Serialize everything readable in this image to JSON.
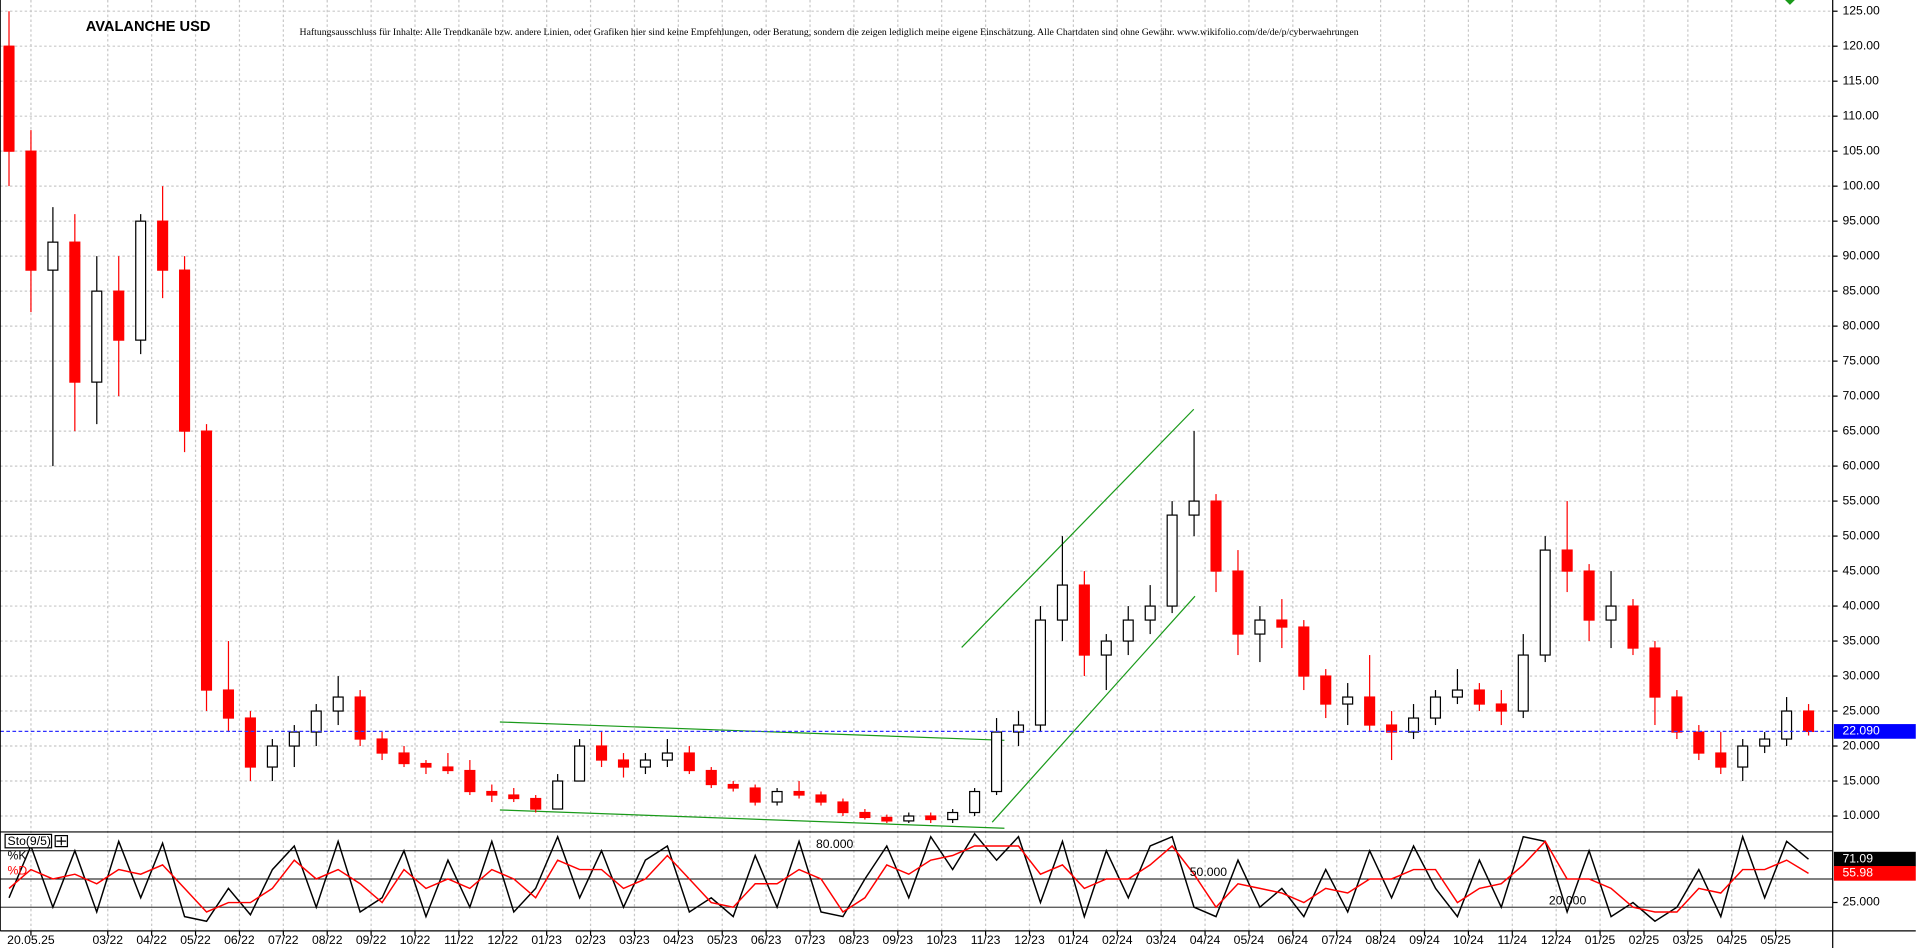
{
  "chart_data": [
    {
      "type": "candlestick",
      "title": "AVALANCHE USD",
      "subtitle": "Haftungsausschluss für Inhalte: Alle Trendkanäle bzw. andere Linien, oder Grafiken hier sind keine Empfehlungen, oder Beratung, sondern die zeigen lediglich meine eigene Einschätzung. Alle Chartdaten sind ohne Gewähr.  www.wikifolio.com/de/de/p/cyberwaehrungen",
      "up_color": "#000000",
      "down_color": "#ff0000",
      "grid": true,
      "x": [
        -0.25,
        0.25,
        0.75,
        1.25,
        1.75,
        2.25,
        2.75,
        3.25,
        3.75,
        4.25,
        4.75,
        5.25,
        5.75,
        6.25,
        6.75,
        7.25,
        7.75,
        8.25,
        8.75,
        9.25,
        9.75,
        10.25,
        10.75,
        11.25,
        11.75,
        12.25,
        12.75,
        13.25,
        13.75,
        14.25,
        14.75,
        15.25,
        15.75,
        16.25,
        16.75,
        17.25,
        17.75,
        18.25,
        18.75,
        19.25,
        19.75,
        20.25,
        20.75,
        21.25,
        21.75,
        22.25,
        22.75,
        23.25,
        23.75,
        24.25,
        24.75,
        25.25,
        25.75,
        26.25,
        26.75,
        27.25,
        27.75,
        28.25,
        28.75,
        29.25,
        29.75,
        30.25,
        30.75,
        31.25,
        31.75,
        32.25,
        32.75,
        33.25,
        33.75,
        34.25,
        34.75,
        35.25,
        35.75,
        36.25,
        36.75,
        37.25,
        37.75,
        38.25,
        38.75,
        39.25,
        39.75,
        40.25,
        40.75
      ],
      "open": [
        120,
        105,
        88,
        92,
        72,
        85,
        78,
        95,
        88,
        65,
        28,
        24,
        17,
        20,
        22,
        25,
        27,
        21,
        19,
        17.5,
        17,
        16.5,
        13.5,
        13,
        12.5,
        11,
        15,
        20,
        18,
        17,
        18,
        19,
        16.5,
        14.5,
        14,
        12,
        13.5,
        13,
        12,
        10.5,
        9.8,
        9.3,
        10,
        9.5,
        10.5,
        13.5,
        22,
        23,
        38,
        43,
        33,
        35,
        38,
        40,
        53,
        55,
        45,
        36,
        38,
        37,
        30,
        26,
        27,
        23,
        22,
        24,
        27,
        28,
        26,
        25,
        33,
        48,
        45,
        38,
        40,
        34,
        27,
        22,
        19,
        17,
        20,
        21,
        25
      ],
      "high": [
        125,
        108,
        97,
        96,
        90,
        90,
        96,
        100,
        90,
        66,
        35,
        25,
        21,
        23,
        26,
        30,
        28,
        22,
        20,
        18,
        19,
        18,
        14.5,
        14,
        13,
        16,
        21,
        22,
        19,
        19,
        21,
        20,
        17,
        15,
        14.5,
        14,
        15,
        13.5,
        12.5,
        11,
        10.2,
        10.5,
        10.5,
        11,
        14,
        24,
        25,
        40,
        50,
        45,
        36,
        40,
        43,
        55,
        65,
        56,
        48,
        40,
        41,
        38,
        31,
        29,
        33,
        25,
        26,
        28,
        31,
        29,
        28,
        36,
        50,
        55,
        46,
        45,
        41,
        35,
        28,
        23,
        22,
        21,
        22,
        27,
        26
      ],
      "low": [
        100,
        82,
        60,
        65,
        66,
        70,
        76,
        84,
        62,
        25,
        22,
        15,
        15,
        17,
        20,
        23,
        20,
        18,
        17,
        16,
        16,
        13,
        12,
        12,
        10.5,
        11,
        15,
        17,
        15.5,
        16,
        17,
        16,
        14,
        13.5,
        11.5,
        11.5,
        12.5,
        11.5,
        10,
        9.5,
        9,
        9,
        9,
        9,
        10,
        13,
        20,
        22,
        35,
        30,
        28,
        33,
        36,
        39,
        50,
        42,
        33,
        32,
        34,
        28,
        24,
        23,
        22,
        18,
        21,
        23,
        26,
        25,
        23,
        24,
        32,
        42,
        35,
        34,
        33,
        23,
        21,
        18,
        16,
        15,
        19,
        20,
        21.5
      ],
      "close": [
        105,
        88,
        92,
        72,
        85,
        78,
        95,
        88,
        65,
        28,
        24,
        17,
        20,
        22,
        25,
        27,
        21,
        19,
        17.5,
        17,
        16.5,
        13.5,
        13,
        12.5,
        11,
        15,
        20,
        18,
        17,
        18,
        19,
        16.5,
        14.5,
        14,
        12,
        13.5,
        13,
        12,
        10.5,
        9.8,
        9.3,
        10,
        9.5,
        10.5,
        13.5,
        22,
        23,
        38,
        43,
        33,
        35,
        38,
        40,
        53,
        55,
        45,
        36,
        38,
        37,
        30,
        26,
        27,
        23,
        22,
        24,
        27,
        28,
        26,
        25,
        33,
        48,
        45,
        38,
        40,
        34,
        27,
        22,
        19,
        17,
        20,
        21,
        25,
        22.09
      ],
      "last_price": {
        "value": 22.09,
        "label": "22.090"
      },
      "xlim": [
        -0.45,
        41.3
      ],
      "ylim": [
        7.9,
        126.6
      ],
      "xticks": [
        {
          "value": 0.25,
          "label": "20.05.25"
        },
        {
          "value": 2,
          "label": "03/22"
        },
        {
          "value": 3,
          "label": "04/22"
        },
        {
          "value": 4,
          "label": "05/22"
        },
        {
          "value": 5,
          "label": "06/22"
        },
        {
          "value": 6,
          "label": "07/22"
        },
        {
          "value": 7,
          "label": "08/22"
        },
        {
          "value": 8,
          "label": "09/22"
        },
        {
          "value": 9,
          "label": "10/22"
        },
        {
          "value": 10,
          "label": "11/22"
        },
        {
          "value": 11,
          "label": "12/22"
        },
        {
          "value": 12,
          "label": "01/23"
        },
        {
          "value": 13,
          "label": "02/23"
        },
        {
          "value": 14,
          "label": "03/23"
        },
        {
          "value": 15,
          "label": "04/23"
        },
        {
          "value": 16,
          "label": "05/23"
        },
        {
          "value": 17,
          "label": "06/23"
        },
        {
          "value": 18,
          "label": "07/23"
        },
        {
          "value": 19,
          "label": "08/23"
        },
        {
          "value": 20,
          "label": "09/23"
        },
        {
          "value": 21,
          "label": "10/23"
        },
        {
          "value": 22,
          "label": "11/23"
        },
        {
          "value": 23,
          "label": "12/23"
        },
        {
          "value": 24,
          "label": "01/24"
        },
        {
          "value": 25,
          "label": "02/24"
        },
        {
          "value": 26,
          "label": "03/24"
        },
        {
          "value": 27,
          "label": "04/24"
        },
        {
          "value": 28,
          "label": "05/24"
        },
        {
          "value": 29,
          "label": "06/24"
        },
        {
          "value": 30,
          "label": "07/24"
        },
        {
          "value": 31,
          "label": "08/24"
        },
        {
          "value": 32,
          "label": "09/24"
        },
        {
          "value": 33,
          "label": "10/24"
        },
        {
          "value": 34,
          "label": "11/24"
        },
        {
          "value": 35,
          "label": "12/24"
        },
        {
          "value": 36,
          "label": "01/25"
        },
        {
          "value": 37,
          "label": "02/25"
        },
        {
          "value": 38,
          "label": "03/25"
        },
        {
          "value": 39,
          "label": "04/25"
        },
        {
          "value": 40,
          "label": "05/25"
        }
      ],
      "yticks": [
        {
          "value": 10,
          "label": "10.000"
        },
        {
          "value": 15,
          "label": "15.000"
        },
        {
          "value": 20,
          "label": "20.000"
        },
        {
          "value": 25,
          "label": "25.000"
        },
        {
          "value": 30,
          "label": "30.000"
        },
        {
          "value": 35,
          "label": "35.000"
        },
        {
          "value": 40,
          "label": "40.000"
        },
        {
          "value": 45,
          "label": "45.000"
        },
        {
          "value": 50,
          "label": "50.000"
        },
        {
          "value": 55,
          "label": "55.000"
        },
        {
          "value": 60,
          "label": "60.000"
        },
        {
          "value": 65,
          "label": "65.000"
        },
        {
          "value": 70,
          "label": "70.000"
        },
        {
          "value": 75,
          "label": "75.000"
        },
        {
          "value": 80,
          "label": "80.000"
        },
        {
          "value": 85,
          "label": "85.000"
        },
        {
          "value": 90,
          "label": "90.000"
        },
        {
          "value": 95,
          "label": "95.000"
        },
        {
          "value": 100,
          "label": "100.00"
        },
        {
          "value": 105,
          "label": "105.00"
        },
        {
          "value": 110,
          "label": "110.00"
        },
        {
          "value": 115,
          "label": "115.00"
        },
        {
          "value": 120,
          "label": "120.00"
        },
        {
          "value": 125,
          "label": "125.00"
        }
      ]
    },
    {
      "type": "line",
      "title": "Sto(9/5)",
      "series": [
        {
          "name": "%K",
          "color": "#000000",
          "values": [
            30,
            85,
            20,
            80,
            15,
            90,
            30,
            88,
            10,
            5,
            40,
            12,
            60,
            85,
            20,
            90,
            15,
            30,
            80,
            10,
            70,
            20,
            90,
            15,
            40,
            95,
            30,
            80,
            20,
            70,
            85,
            15,
            30,
            10,
            75,
            20,
            90,
            15,
            10,
            50,
            85,
            30,
            95,
            60,
            98,
            70,
            95,
            25,
            90,
            10,
            80,
            30,
            85,
            95,
            20,
            10,
            70,
            20,
            40,
            10,
            60,
            15,
            80,
            30,
            85,
            40,
            10,
            70,
            20,
            95,
            90,
            15,
            80,
            10,
            25,
            5,
            20,
            60,
            10,
            95,
            30,
            90,
            71.09
          ]
        },
        {
          "name": "%D",
          "color": "#ff0000",
          "values": [
            40,
            60,
            50,
            55,
            45,
            60,
            55,
            65,
            40,
            15,
            25,
            25,
            40,
            70,
            50,
            60,
            45,
            25,
            60,
            40,
            50,
            40,
            60,
            50,
            30,
            70,
            60,
            60,
            40,
            50,
            75,
            50,
            25,
            20,
            45,
            45,
            60,
            50,
            15,
            30,
            65,
            55,
            70,
            75,
            85,
            85,
            85,
            55,
            65,
            40,
            50,
            50,
            65,
            85,
            55,
            20,
            45,
            40,
            35,
            25,
            40,
            35,
            50,
            50,
            60,
            60,
            25,
            40,
            45,
            65,
            90,
            50,
            50,
            40,
            20,
            15,
            15,
            40,
            35,
            60,
            60,
            70,
            55.98
          ]
        }
      ],
      "levels": [
        {
          "value": 80,
          "label": "80.000"
        },
        {
          "value": 50,
          "label": "50.000"
        },
        {
          "value": 20,
          "label": "20.000"
        }
      ],
      "ylim": [
        0,
        100
      ],
      "yticks": [
        {
          "value": 25,
          "label": "25.000"
        }
      ]
    }
  ]
}
